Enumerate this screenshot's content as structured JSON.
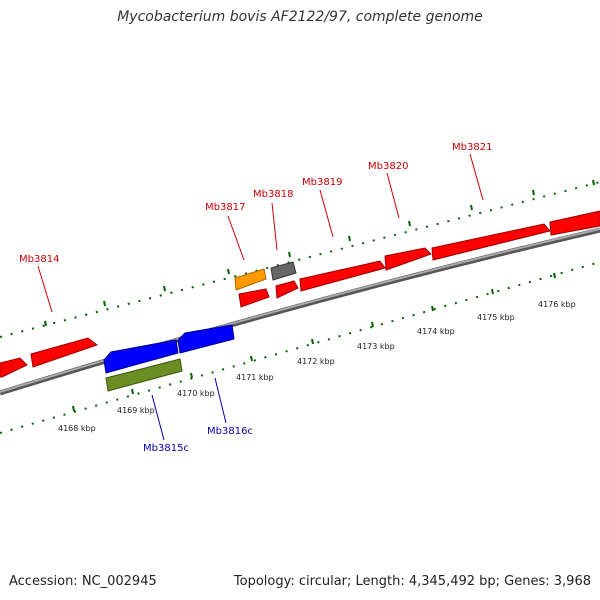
{
  "title": "Mycobacterium bovis AF2122/97, complete genome",
  "footer": {
    "accession": "Accession: NC_002945",
    "summary": "Topology: circular; Length: 4,345,492 bp; Genes: 3,968"
  },
  "colors": {
    "forward_gene": "#ff0000",
    "reverse_gene": "#0000ff",
    "orange_gene": "#ff9900",
    "gray_gene": "#666666",
    "green_gene": "#6b8e23",
    "backbone": "#888888",
    "tick": "#006400",
    "forward_label": "#cc0000",
    "reverse_label": "#0000aa"
  },
  "gene_labels": [
    {
      "id": "Mb3814",
      "strand": "forward"
    },
    {
      "id": "Mb3815c",
      "strand": "reverse"
    },
    {
      "id": "Mb3816c",
      "strand": "reverse"
    },
    {
      "id": "Mb3817",
      "strand": "forward"
    },
    {
      "id": "Mb3818",
      "strand": "forward"
    },
    {
      "id": "Mb3819",
      "strand": "forward"
    },
    {
      "id": "Mb3820",
      "strand": "forward"
    },
    {
      "id": "Mb3821",
      "strand": "forward"
    }
  ],
  "kbp_ticks": [
    "4168 kbp",
    "4169 kbp",
    "4170 kbp",
    "4171 kbp",
    "4172 kbp",
    "4173 kbp",
    "4174 kbp",
    "4175 kbp",
    "4176 kbp"
  ]
}
